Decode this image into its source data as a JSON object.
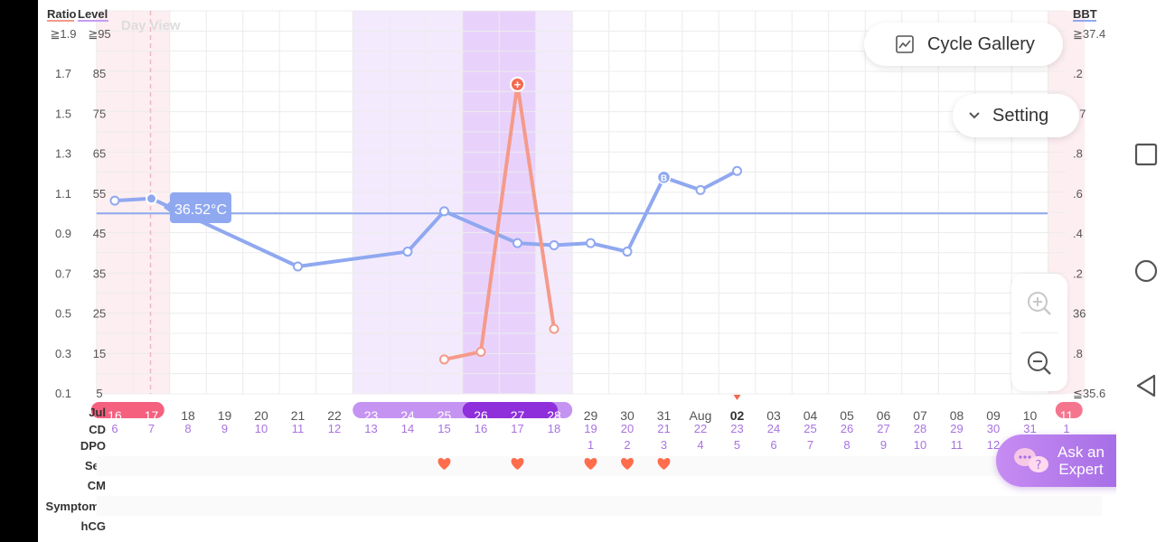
{
  "header": {
    "ratio_label": "Ratio",
    "level_label": "Level",
    "bbt_label": "BBT",
    "day_view": "Day View",
    "ratio_top": "≧1.9",
    "level_top": "≧95",
    "bbt_top": "≧37.4",
    "bbt_bottom": "≦35.6"
  },
  "buttons": {
    "cycle_gallery": "Cycle Gallery",
    "setting": "Setting",
    "ask_expert_line1": "Ask an",
    "ask_expert_line2": "Expert"
  },
  "tooltip": {
    "text": "36.52°C"
  },
  "row_labels": {
    "cd": "CD",
    "dpo": "DPO",
    "sex": "Sex",
    "cm": "CM",
    "symptoms": "Symptoms",
    "hcg": "hCG"
  },
  "colors": {
    "bbt": "#8fa8f0",
    "lh": "#f59a8a",
    "period": "#f2527c",
    "fertile": "#c59cf2",
    "ovulation": "#9b3ee0",
    "heart": "#ff6d4d"
  },
  "chart_data": {
    "type": "line",
    "days": [
      "16",
      "17",
      "18",
      "19",
      "20",
      "21",
      "22",
      "23",
      "24",
      "25",
      "26",
      "27",
      "28",
      "29",
      "30",
      "31",
      "Aug",
      "02",
      "03",
      "04",
      "05",
      "06",
      "07",
      "08",
      "09",
      "10",
      "11"
    ],
    "month_label": "Jul",
    "cd": [
      "6",
      "7",
      "8",
      "9",
      "10",
      "11",
      "12",
      "13",
      "14",
      "15",
      "16",
      "17",
      "18",
      "19",
      "20",
      "21",
      "22",
      "23",
      "24",
      "25",
      "26",
      "27",
      "28",
      "29",
      "30",
      "31",
      "1"
    ],
    "dpo": [
      "",
      "",
      "",
      "",
      "",
      "",
      "",
      "",
      "",
      "",
      "",
      "",
      "",
      "1",
      "2",
      "3",
      "4",
      "5",
      "6",
      "7",
      "8",
      "9",
      "10",
      "11",
      "12",
      "",
      ""
    ],
    "today_index": 17,
    "period_days": [
      0,
      1,
      26
    ],
    "fertile_days": [
      7,
      8,
      9,
      12
    ],
    "ovulation_days": [
      10,
      11
    ],
    "sex_days": [
      9,
      11,
      13,
      14,
      15
    ],
    "left_axis_ratio": [
      "≧1.9",
      "1.7",
      "1.5",
      "1.3",
      "1.1",
      "0.9",
      "0.7",
      "0.5",
      "0.3",
      "0.1"
    ],
    "left_axis_level": [
      "≧95",
      "85",
      "75",
      "65",
      "55",
      "45",
      "35",
      "25",
      "15",
      "5"
    ],
    "right_axis_bbt": [
      "≧37.4",
      ".2",
      "37",
      ".8",
      ".6",
      ".4",
      ".2",
      "36",
      ".8",
      "≦35.6"
    ],
    "bbt_ylim": [
      35.6,
      37.4
    ],
    "coverline": 36.45,
    "series": [
      {
        "values": [
          36.51,
          36.52,
          null,
          null,
          null,
          36.2,
          null,
          null,
          36.27,
          36.46,
          null,
          36.31,
          36.3,
          36.31,
          36.27,
          36.62,
          36.56,
          36.65,
          null,
          null,
          null,
          null,
          null,
          null,
          null,
          null,
          null
        ],
        "markers": [
          "",
          "",
          "",
          "",
          "",
          "",
          "",
          "",
          "",
          "",
          "",
          "",
          "",
          "",
          "",
          "B",
          "",
          "",
          "",
          "",
          "",
          "",
          "",
          "",
          "",
          "",
          ""
        ]
      },
      {
        "values": [
          null,
          null,
          null,
          null,
          null,
          null,
          null,
          null,
          null,
          9,
          11,
          81,
          17,
          null,
          null,
          null,
          null,
          null,
          null,
          null,
          null,
          null,
          null,
          null,
          null,
          null,
          null
        ]
      }
    ]
  }
}
